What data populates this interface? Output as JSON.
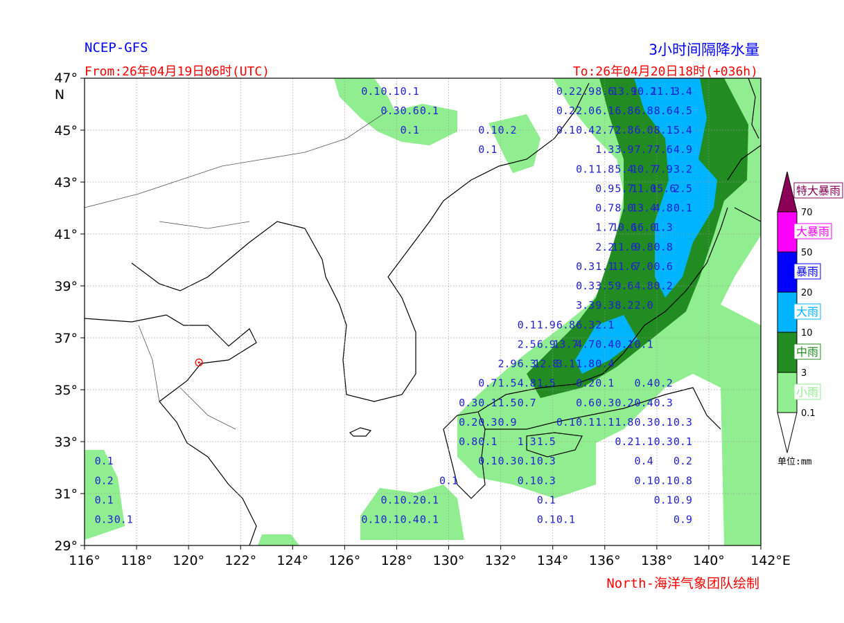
{
  "header": {
    "model": "NCEP-GFS",
    "title": "3小时间隔降水量",
    "from": "From:26年04月19日06时(UTC)",
    "to": "To:26年04月20日18时(+036h)"
  },
  "credit": "North-海洋气象团队绘制",
  "map": {
    "lon_range": [
      116,
      142
    ],
    "lat_range": [
      29,
      47
    ],
    "lon_ticks": [
      {
        "v": 116,
        "label": "116°"
      },
      {
        "v": 118,
        "label": "118°"
      },
      {
        "v": 120,
        "label": "120°"
      },
      {
        "v": 122,
        "label": "122°"
      },
      {
        "v": 124,
        "label": "124°"
      },
      {
        "v": 126,
        "label": "126°"
      },
      {
        "v": 128,
        "label": "128°"
      },
      {
        "v": 130,
        "label": "130°"
      },
      {
        "v": 132,
        "label": "132°"
      },
      {
        "v": 134,
        "label": "134°"
      },
      {
        "v": 136,
        "label": "136°"
      },
      {
        "v": 138,
        "label": "138°"
      },
      {
        "v": 140,
        "label": "140°"
      },
      {
        "v": 142,
        "label": "142°E"
      }
    ],
    "lat_ticks": [
      {
        "v": 29,
        "label": "29°"
      },
      {
        "v": 31,
        "label": "31°"
      },
      {
        "v": 33,
        "label": "33°"
      },
      {
        "v": 35,
        "label": "35°"
      },
      {
        "v": 37,
        "label": "37°"
      },
      {
        "v": 39,
        "label": "39°"
      },
      {
        "v": 41,
        "label": "41°"
      },
      {
        "v": 43,
        "label": "43°"
      },
      {
        "v": 45,
        "label": "45°"
      },
      {
        "v": 47,
        "label": "47°N"
      }
    ],
    "station": {
      "name": "marker",
      "lon": 120.4,
      "lat": 36.05,
      "color": "#ff0000"
    }
  },
  "legend": {
    "unit": "单位:mm",
    "bins": [
      {
        "label": "特大暴雨",
        "color": "#8b0057",
        "text_color": "#8b0057"
      },
      {
        "label": "大暴雨",
        "color": "#ff00ff",
        "text_color": "#ff00ff"
      },
      {
        "label": "暴雨",
        "color": "#0000ff",
        "text_color": "#0000ff"
      },
      {
        "label": "大雨",
        "color": "#00b4ff",
        "text_color": "#00b4ff"
      },
      {
        "label": "中雨",
        "color": "#228b22",
        "text_color": "#228b22"
      },
      {
        "label": "小雨",
        "color": "#90ee90",
        "text_color": "#90ee90"
      }
    ],
    "ticks": [
      "70",
      "50",
      "20",
      "10",
      "3",
      "0.1"
    ]
  },
  "chart_data": {
    "type": "map-grid-values",
    "units": "mm",
    "grid_step_deg": 0.75,
    "points": [
      {
        "lon": 127.0,
        "lat": 46.5,
        "v": "0.1"
      },
      {
        "lon": 127.75,
        "lat": 46.5,
        "v": "0.1"
      },
      {
        "lon": 128.5,
        "lat": 46.5,
        "v": "0.1"
      },
      {
        "lon": 127.75,
        "lat": 45.75,
        "v": "0.3"
      },
      {
        "lon": 128.5,
        "lat": 45.75,
        "v": "0.6"
      },
      {
        "lon": 129.25,
        "lat": 45.75,
        "v": "0.1"
      },
      {
        "lon": 128.5,
        "lat": 45.0,
        "v": "0.1"
      },
      {
        "lon": 131.5,
        "lat": 45.0,
        "v": "0.1"
      },
      {
        "lon": 132.25,
        "lat": 45.0,
        "v": "0.2"
      },
      {
        "lon": 131.5,
        "lat": 44.25,
        "v": "0.1"
      },
      {
        "lon": 134.5,
        "lat": 46.5,
        "v": "0.2"
      },
      {
        "lon": 135.25,
        "lat": 46.5,
        "v": "2.9"
      },
      {
        "lon": 136.0,
        "lat": 46.5,
        "v": "8.6"
      },
      {
        "lon": 136.75,
        "lat": 46.5,
        "v": "13.9"
      },
      {
        "lon": 137.5,
        "lat": 46.5,
        "v": "10.2"
      },
      {
        "lon": 138.25,
        "lat": 46.5,
        "v": "11.1"
      },
      {
        "lon": 139.0,
        "lat": 46.5,
        "v": "3.4"
      },
      {
        "lon": 134.5,
        "lat": 45.75,
        "v": "0.2"
      },
      {
        "lon": 135.25,
        "lat": 45.75,
        "v": "2.0"
      },
      {
        "lon": 136.0,
        "lat": 45.75,
        "v": "6.1"
      },
      {
        "lon": 136.75,
        "lat": 45.75,
        "v": "6.8"
      },
      {
        "lon": 137.5,
        "lat": 45.75,
        "v": "6.8"
      },
      {
        "lon": 138.25,
        "lat": 45.75,
        "v": "8.6"
      },
      {
        "lon": 139.0,
        "lat": 45.75,
        "v": "4.5"
      },
      {
        "lon": 134.5,
        "lat": 45.0,
        "v": "0.1"
      },
      {
        "lon": 135.25,
        "lat": 45.0,
        "v": "0.4"
      },
      {
        "lon": 136.0,
        "lat": 45.0,
        "v": "2.7"
      },
      {
        "lon": 136.75,
        "lat": 45.0,
        "v": "2.8"
      },
      {
        "lon": 137.5,
        "lat": 45.0,
        "v": "6.0"
      },
      {
        "lon": 138.25,
        "lat": 45.0,
        "v": "8.1"
      },
      {
        "lon": 139.0,
        "lat": 45.0,
        "v": "5.4"
      },
      {
        "lon": 136.0,
        "lat": 44.25,
        "v": "1.3"
      },
      {
        "lon": 136.75,
        "lat": 44.25,
        "v": "3.9"
      },
      {
        "lon": 137.5,
        "lat": 44.25,
        "v": "7.7"
      },
      {
        "lon": 138.25,
        "lat": 44.25,
        "v": "7.6"
      },
      {
        "lon": 139.0,
        "lat": 44.25,
        "v": "4.9"
      },
      {
        "lon": 135.25,
        "lat": 43.5,
        "v": "0.1"
      },
      {
        "lon": 136.0,
        "lat": 43.5,
        "v": "1.8"
      },
      {
        "lon": 136.75,
        "lat": 43.5,
        "v": "5.4"
      },
      {
        "lon": 137.5,
        "lat": 43.5,
        "v": "10.7"
      },
      {
        "lon": 138.25,
        "lat": 43.5,
        "v": "7.9"
      },
      {
        "lon": 139.0,
        "lat": 43.5,
        "v": "3.2"
      },
      {
        "lon": 136.0,
        "lat": 42.75,
        "v": "0.9"
      },
      {
        "lon": 136.75,
        "lat": 42.75,
        "v": "5.7"
      },
      {
        "lon": 137.5,
        "lat": 42.75,
        "v": "11.0"
      },
      {
        "lon": 138.25,
        "lat": 42.75,
        "v": "15.6"
      },
      {
        "lon": 139.0,
        "lat": 42.75,
        "v": "2.5"
      },
      {
        "lon": 136.0,
        "lat": 42.0,
        "v": "0.7"
      },
      {
        "lon": 136.75,
        "lat": 42.0,
        "v": "8.0"
      },
      {
        "lon": 137.5,
        "lat": 42.0,
        "v": "13.4"
      },
      {
        "lon": 138.25,
        "lat": 42.0,
        "v": "4.8"
      },
      {
        "lon": 139.0,
        "lat": 42.0,
        "v": "0.1"
      },
      {
        "lon": 136.0,
        "lat": 41.25,
        "v": "1.7"
      },
      {
        "lon": 136.75,
        "lat": 41.25,
        "v": "10.6"
      },
      {
        "lon": 137.5,
        "lat": 41.25,
        "v": "16.0"
      },
      {
        "lon": 138.25,
        "lat": 41.25,
        "v": "1.3"
      },
      {
        "lon": 136.0,
        "lat": 40.5,
        "v": "2.2"
      },
      {
        "lon": 136.75,
        "lat": 40.5,
        "v": "11.6"
      },
      {
        "lon": 137.5,
        "lat": 40.5,
        "v": "9.8"
      },
      {
        "lon": 138.25,
        "lat": 40.5,
        "v": "0.8"
      },
      {
        "lon": 135.25,
        "lat": 39.75,
        "v": "0.3"
      },
      {
        "lon": 136.0,
        "lat": 39.75,
        "v": "1.1"
      },
      {
        "lon": 136.75,
        "lat": 39.75,
        "v": "11.6"
      },
      {
        "lon": 137.5,
        "lat": 39.75,
        "v": "7.0"
      },
      {
        "lon": 138.25,
        "lat": 39.75,
        "v": "0.6"
      },
      {
        "lon": 135.25,
        "lat": 39.0,
        "v": "0.3"
      },
      {
        "lon": 136.0,
        "lat": 39.0,
        "v": "3.5"
      },
      {
        "lon": 136.75,
        "lat": 39.0,
        "v": "9.6"
      },
      {
        "lon": 137.5,
        "lat": 39.0,
        "v": "4.8"
      },
      {
        "lon": 138.25,
        "lat": 39.0,
        "v": "0.2"
      },
      {
        "lon": 135.25,
        "lat": 38.25,
        "v": "3.3"
      },
      {
        "lon": 136.0,
        "lat": 38.25,
        "v": "9.3"
      },
      {
        "lon": 136.75,
        "lat": 38.25,
        "v": "8.2"
      },
      {
        "lon": 137.5,
        "lat": 38.25,
        "v": "2.0"
      },
      {
        "lon": 133.0,
        "lat": 37.5,
        "v": "0.1"
      },
      {
        "lon": 133.75,
        "lat": 37.5,
        "v": "1.9"
      },
      {
        "lon": 134.5,
        "lat": 37.5,
        "v": "6.8"
      },
      {
        "lon": 135.25,
        "lat": 37.5,
        "v": "6.3"
      },
      {
        "lon": 136.0,
        "lat": 37.5,
        "v": "2.1"
      },
      {
        "lon": 133.0,
        "lat": 36.75,
        "v": "2.5"
      },
      {
        "lon": 133.75,
        "lat": 36.75,
        "v": "6.9"
      },
      {
        "lon": 134.5,
        "lat": 36.75,
        "v": "13.7"
      },
      {
        "lon": 135.25,
        "lat": 36.75,
        "v": "4.7"
      },
      {
        "lon": 136.0,
        "lat": 36.75,
        "v": "0.4"
      },
      {
        "lon": 136.75,
        "lat": 36.75,
        "v": "0.1"
      },
      {
        "lon": 137.5,
        "lat": 36.75,
        "v": "0.1"
      },
      {
        "lon": 132.25,
        "lat": 36.0,
        "v": "2.9"
      },
      {
        "lon": 133.0,
        "lat": 36.0,
        "v": "6.3"
      },
      {
        "lon": 133.75,
        "lat": 36.0,
        "v": "12.8"
      },
      {
        "lon": 134.5,
        "lat": 36.0,
        "v": "3.1"
      },
      {
        "lon": 135.25,
        "lat": 36.0,
        "v": "1.8"
      },
      {
        "lon": 136.0,
        "lat": 36.0,
        "v": "0.4"
      },
      {
        "lon": 131.5,
        "lat": 35.25,
        "v": "0.7"
      },
      {
        "lon": 132.25,
        "lat": 35.25,
        "v": "1.5"
      },
      {
        "lon": 133.0,
        "lat": 35.25,
        "v": "4.8"
      },
      {
        "lon": 133.75,
        "lat": 35.25,
        "v": "1.5"
      },
      {
        "lon": 135.25,
        "lat": 35.25,
        "v": "0.2"
      },
      {
        "lon": 136.0,
        "lat": 35.25,
        "v": "0.1"
      },
      {
        "lon": 137.5,
        "lat": 35.25,
        "v": "0.4"
      },
      {
        "lon": 138.25,
        "lat": 35.25,
        "v": "0.2"
      },
      {
        "lon": 130.75,
        "lat": 34.5,
        "v": "0.3"
      },
      {
        "lon": 131.5,
        "lat": 34.5,
        "v": "0.1"
      },
      {
        "lon": 132.25,
        "lat": 34.5,
        "v": "1.5"
      },
      {
        "lon": 133.0,
        "lat": 34.5,
        "v": "0.7"
      },
      {
        "lon": 135.25,
        "lat": 34.5,
        "v": "0.6"
      },
      {
        "lon": 136.0,
        "lat": 34.5,
        "v": "0.3"
      },
      {
        "lon": 136.75,
        "lat": 34.5,
        "v": "0.2"
      },
      {
        "lon": 137.5,
        "lat": 34.5,
        "v": "0.4"
      },
      {
        "lon": 138.25,
        "lat": 34.5,
        "v": "0.3"
      },
      {
        "lon": 130.75,
        "lat": 33.75,
        "v": "0.2"
      },
      {
        "lon": 131.5,
        "lat": 33.75,
        "v": "0.3"
      },
      {
        "lon": 132.25,
        "lat": 33.75,
        "v": "0.9"
      },
      {
        "lon": 134.5,
        "lat": 33.75,
        "v": "0.1"
      },
      {
        "lon": 135.25,
        "lat": 33.75,
        "v": "0.1"
      },
      {
        "lon": 136.0,
        "lat": 33.75,
        "v": "1.1"
      },
      {
        "lon": 136.75,
        "lat": 33.75,
        "v": "1.8"
      },
      {
        "lon": 137.5,
        "lat": 33.75,
        "v": "0.3"
      },
      {
        "lon": 138.25,
        "lat": 33.75,
        "v": "0.1"
      },
      {
        "lon": 139.0,
        "lat": 33.75,
        "v": "0.3"
      },
      {
        "lon": 130.75,
        "lat": 33.0,
        "v": "0.8"
      },
      {
        "lon": 131.5,
        "lat": 33.0,
        "v": "0.1"
      },
      {
        "lon": 133.0,
        "lat": 33.0,
        "v": "1.3"
      },
      {
        "lon": 133.75,
        "lat": 33.0,
        "v": "1.5"
      },
      {
        "lon": 136.75,
        "lat": 33.0,
        "v": "0.2"
      },
      {
        "lon": 137.5,
        "lat": 33.0,
        "v": "1.1"
      },
      {
        "lon": 138.25,
        "lat": 33.0,
        "v": "0.3"
      },
      {
        "lon": 139.0,
        "lat": 33.0,
        "v": "0.1"
      },
      {
        "lon": 131.5,
        "lat": 32.25,
        "v": "0.1"
      },
      {
        "lon": 132.25,
        "lat": 32.25,
        "v": "0.3"
      },
      {
        "lon": 133.0,
        "lat": 32.25,
        "v": "0.1"
      },
      {
        "lon": 133.75,
        "lat": 32.25,
        "v": "0.3"
      },
      {
        "lon": 137.5,
        "lat": 32.25,
        "v": "0.4"
      },
      {
        "lon": 139.0,
        "lat": 32.25,
        "v": "0.2"
      },
      {
        "lon": 130.0,
        "lat": 31.5,
        "v": "0.1"
      },
      {
        "lon": 133.0,
        "lat": 31.5,
        "v": "0.1"
      },
      {
        "lon": 133.75,
        "lat": 31.5,
        "v": "0.3"
      },
      {
        "lon": 137.5,
        "lat": 31.5,
        "v": "0.1"
      },
      {
        "lon": 138.25,
        "lat": 31.5,
        "v": "0.1"
      },
      {
        "lon": 139.0,
        "lat": 31.5,
        "v": "0.8"
      },
      {
        "lon": 127.75,
        "lat": 30.75,
        "v": "0.1"
      },
      {
        "lon": 128.5,
        "lat": 30.75,
        "v": "0.2"
      },
      {
        "lon": 129.25,
        "lat": 30.75,
        "v": "0.1"
      },
      {
        "lon": 133.75,
        "lat": 30.75,
        "v": "0.1"
      },
      {
        "lon": 138.25,
        "lat": 30.75,
        "v": "0.1"
      },
      {
        "lon": 139.0,
        "lat": 30.75,
        "v": "0.9"
      },
      {
        "lon": 127.0,
        "lat": 30.0,
        "v": "0.1"
      },
      {
        "lon": 127.75,
        "lat": 30.0,
        "v": "0.1"
      },
      {
        "lon": 128.5,
        "lat": 30.0,
        "v": "0.4"
      },
      {
        "lon": 129.25,
        "lat": 30.0,
        "v": "0.1"
      },
      {
        "lon": 133.75,
        "lat": 30.0,
        "v": "0.1"
      },
      {
        "lon": 134.5,
        "lat": 30.0,
        "v": "0.1"
      },
      {
        "lon": 139.0,
        "lat": 30.0,
        "v": "0.9"
      },
      {
        "lon": 116.75,
        "lat": 32.25,
        "v": "0.1"
      },
      {
        "lon": 116.75,
        "lat": 31.5,
        "v": "0.2"
      },
      {
        "lon": 116.75,
        "lat": 30.75,
        "v": "0.1"
      },
      {
        "lon": 116.75,
        "lat": 30.0,
        "v": "0.3"
      },
      {
        "lon": 117.5,
        "lat": 30.0,
        "v": "0.1"
      }
    ]
  }
}
